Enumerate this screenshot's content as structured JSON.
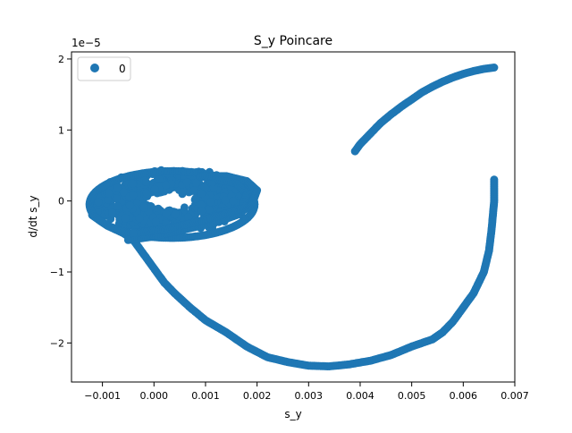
{
  "chart_data": {
    "type": "scatter",
    "title": "S_y Poincare",
    "xlabel": "s_y",
    "ylabel": "d/dt s_y",
    "y_offset_label": "1e−5",
    "xlim": [
      -0.0016,
      0.007
    ],
    "ylim": [
      -2.55,
      2.1
    ],
    "y_scale_note": "values in units of 1e-5",
    "x_ticks": [
      -0.001,
      0.0,
      0.001,
      0.002,
      0.003,
      0.004,
      0.005,
      0.006,
      0.007
    ],
    "x_tick_labels": [
      "−0.001",
      "0.000",
      "0.001",
      "0.002",
      "0.003",
      "0.004",
      "0.005",
      "0.006",
      "0.007"
    ],
    "y_ticks": [
      -2,
      -1,
      0,
      1,
      2
    ],
    "y_tick_labels": [
      "−2",
      "−1",
      "0",
      "1",
      "2"
    ],
    "grid": false,
    "legend_position": "top-left",
    "marker_color": "#1f77b4",
    "series": [
      {
        "name": "0",
        "description_points": {
          "upper_arc": [
            [
              0.0039,
              0.7
            ],
            [
              0.004,
              0.8
            ],
            [
              0.0042,
              0.95
            ],
            [
              0.0044,
              1.1
            ],
            [
              0.0046,
              1.22
            ],
            [
              0.0048,
              1.33
            ],
            [
              0.005,
              1.43
            ],
            [
              0.0052,
              1.53
            ],
            [
              0.0054,
              1.61
            ],
            [
              0.0056,
              1.68
            ],
            [
              0.0058,
              1.74
            ],
            [
              0.006,
              1.79
            ],
            [
              0.0062,
              1.83
            ],
            [
              0.0064,
              1.86
            ],
            [
              0.0066,
              1.88
            ]
          ],
          "lower_arc": [
            [
              0.0066,
              0.3
            ],
            [
              0.0066,
              0.0
            ],
            [
              0.00655,
              -0.4
            ],
            [
              0.0065,
              -0.7
            ],
            [
              0.0064,
              -1.0
            ],
            [
              0.0062,
              -1.3
            ],
            [
              0.006,
              -1.5
            ],
            [
              0.0058,
              -1.7
            ],
            [
              0.0056,
              -1.85
            ],
            [
              0.0054,
              -1.95
            ],
            [
              0.005,
              -2.05
            ],
            [
              0.0046,
              -2.17
            ],
            [
              0.0042,
              -2.25
            ],
            [
              0.0038,
              -2.3
            ],
            [
              0.0034,
              -2.33
            ],
            [
              0.003,
              -2.32
            ],
            [
              0.0026,
              -2.27
            ],
            [
              0.0022,
              -2.2
            ],
            [
              0.0018,
              -2.05
            ],
            [
              0.0014,
              -1.85
            ],
            [
              0.001,
              -1.68
            ],
            [
              0.0007,
              -1.5
            ],
            [
              0.0004,
              -1.3
            ],
            [
              0.0002,
              -1.15
            ],
            [
              0.0,
              -0.95
            ],
            [
              -0.0002,
              -0.75
            ],
            [
              -0.0004,
              -0.55
            ],
            [
              -0.0006,
              -0.45
            ],
            [
              -0.0009,
              -0.35
            ],
            [
              -0.0012,
              -0.2
            ]
          ],
          "cluster_center": [
            0.0003,
            0.0
          ],
          "cluster_x_range": [
            -0.0013,
            0.002
          ],
          "cluster_y_range": [
            -0.55,
            0.45
          ]
        }
      }
    ]
  }
}
